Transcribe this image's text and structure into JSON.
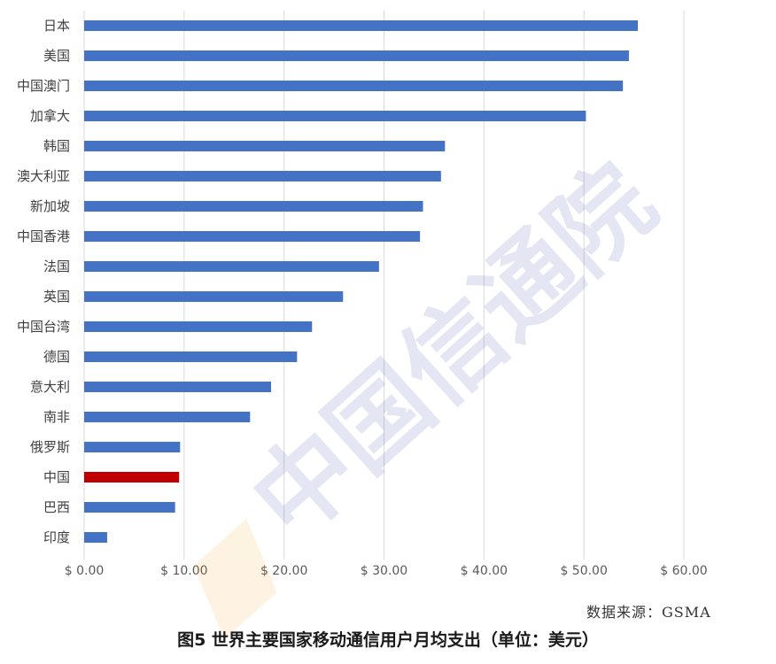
{
  "chart_data": {
    "type": "bar",
    "orientation": "horizontal",
    "categories": [
      "日本",
      "美国",
      "中国澳门",
      "加拿大",
      "韩国",
      "澳大利亚",
      "新加坡",
      "中国香港",
      "法国",
      "英国",
      "中国台湾",
      "德国",
      "意大利",
      "南非",
      "俄罗斯",
      "中国",
      "巴西",
      "印度"
    ],
    "values": [
      55.4,
      54.5,
      53.9,
      50.2,
      36.1,
      35.7,
      33.9,
      33.6,
      29.5,
      25.9,
      22.8,
      21.3,
      18.7,
      16.6,
      9.6,
      9.5,
      9.1,
      2.3
    ],
    "tick_labels": [
      "$ 0.00",
      "$ 10.00",
      "$ 20.00",
      "$ 30.00",
      "$ 40.00",
      "$ 50.00",
      "$ 60.00"
    ],
    "xlim": [
      0,
      60
    ],
    "grid": true,
    "bar_color": "#4472C4",
    "highlight": {
      "category": "中国",
      "color": "#C00000"
    }
  },
  "source": "数据来源：GSMA",
  "caption": "图5 世界主要国家移动通信用户月均支出（单位：美元）",
  "watermark": "中国信通院"
}
